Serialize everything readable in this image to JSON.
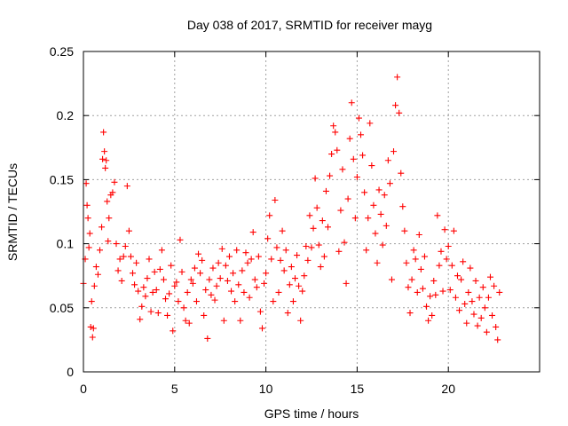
{
  "chart_data": {
    "type": "scatter",
    "title": "Day 038 of 2017, SRMTID for receiver mayg",
    "xlabel": "GPS time / hours",
    "ylabel": "SRMTID / TECUs",
    "xlim": [
      0,
      25
    ],
    "ylim": [
      0,
      0.25
    ],
    "xticks": [
      "0",
      "5",
      "10",
      "15",
      "20"
    ],
    "yticks": [
      "0",
      "0.05",
      "0.1",
      "0.15",
      "0.2",
      "0.25"
    ],
    "grid": true,
    "marker": "+",
    "color": "#ff0000",
    "series": [
      {
        "name": "SRMTID",
        "points": [
          [
            0.0,
            0.069
          ],
          [
            0.1,
            0.088
          ],
          [
            0.15,
            0.147
          ],
          [
            0.2,
            0.13
          ],
          [
            0.25,
            0.12
          ],
          [
            0.3,
            0.097
          ],
          [
            0.35,
            0.108
          ],
          [
            0.4,
            0.035
          ],
          [
            0.45,
            0.055
          ],
          [
            0.5,
            0.027
          ],
          [
            0.55,
            0.034
          ],
          [
            0.6,
            0.067
          ],
          [
            0.7,
            0.082
          ],
          [
            0.8,
            0.076
          ],
          [
            0.9,
            0.095
          ],
          [
            1.0,
            0.113
          ],
          [
            1.05,
            0.166
          ],
          [
            1.1,
            0.187
          ],
          [
            1.15,
            0.172
          ],
          [
            1.2,
            0.159
          ],
          [
            1.25,
            0.165
          ],
          [
            1.3,
            0.133
          ],
          [
            1.35,
            0.102
          ],
          [
            1.4,
            0.12
          ],
          [
            1.5,
            0.138
          ],
          [
            1.6,
            0.14
          ],
          [
            1.7,
            0.148
          ],
          [
            1.8,
            0.1
          ],
          [
            1.9,
            0.079
          ],
          [
            2.0,
            0.088
          ],
          [
            2.1,
            0.071
          ],
          [
            2.2,
            0.09
          ],
          [
            2.3,
            0.098
          ],
          [
            2.4,
            0.145
          ],
          [
            2.5,
            0.11
          ],
          [
            2.6,
            0.09
          ],
          [
            2.7,
            0.077
          ],
          [
            2.8,
            0.068
          ],
          [
            2.9,
            0.085
          ],
          [
            3.0,
            0.063
          ],
          [
            3.1,
            0.041
          ],
          [
            3.2,
            0.051
          ],
          [
            3.3,
            0.066
          ],
          [
            3.4,
            0.059
          ],
          [
            3.5,
            0.073
          ],
          [
            3.6,
            0.088
          ],
          [
            3.7,
            0.047
          ],
          [
            3.8,
            0.062
          ],
          [
            3.9,
            0.078
          ],
          [
            4.0,
            0.064
          ],
          [
            4.1,
            0.046
          ],
          [
            4.2,
            0.08
          ],
          [
            4.3,
            0.095
          ],
          [
            4.4,
            0.072
          ],
          [
            4.5,
            0.057
          ],
          [
            4.6,
            0.044
          ],
          [
            4.7,
            0.061
          ],
          [
            4.8,
            0.083
          ],
          [
            4.9,
            0.032
          ],
          [
            5.0,
            0.067
          ],
          [
            5.1,
            0.07
          ],
          [
            5.2,
            0.055
          ],
          [
            5.3,
            0.103
          ],
          [
            5.4,
            0.078
          ],
          [
            5.5,
            0.05
          ],
          [
            5.6,
            0.04
          ],
          [
            5.7,
            0.062
          ],
          [
            5.8,
            0.038
          ],
          [
            5.9,
            0.072
          ],
          [
            6.0,
            0.069
          ],
          [
            6.1,
            0.081
          ],
          [
            6.2,
            0.055
          ],
          [
            6.3,
            0.092
          ],
          [
            6.4,
            0.077
          ],
          [
            6.5,
            0.087
          ],
          [
            6.6,
            0.044
          ],
          [
            6.7,
            0.064
          ],
          [
            6.8,
            0.026
          ],
          [
            6.9,
            0.072
          ],
          [
            7.0,
            0.06
          ],
          [
            7.1,
            0.081
          ],
          [
            7.2,
            0.056
          ],
          [
            7.3,
            0.067
          ],
          [
            7.4,
            0.085
          ],
          [
            7.5,
            0.073
          ],
          [
            7.6,
            0.096
          ],
          [
            7.7,
            0.04
          ],
          [
            7.8,
            0.083
          ],
          [
            7.9,
            0.071
          ],
          [
            8.0,
            0.09
          ],
          [
            8.1,
            0.063
          ],
          [
            8.2,
            0.077
          ],
          [
            8.3,
            0.055
          ],
          [
            8.4,
            0.095
          ],
          [
            8.5,
            0.068
          ],
          [
            8.6,
            0.04
          ],
          [
            8.7,
            0.079
          ],
          [
            8.8,
            0.062
          ],
          [
            8.9,
            0.093
          ],
          [
            9.0,
            0.085
          ],
          [
            9.1,
            0.058
          ],
          [
            9.2,
            0.088
          ],
          [
            9.3,
            0.109
          ],
          [
            9.4,
            0.072
          ],
          [
            9.5,
            0.066
          ],
          [
            9.6,
            0.09
          ],
          [
            9.7,
            0.047
          ],
          [
            9.8,
            0.034
          ],
          [
            9.9,
            0.069
          ],
          [
            10.0,
            0.077
          ],
          [
            10.1,
            0.104
          ],
          [
            10.2,
            0.122
          ],
          [
            10.3,
            0.088
          ],
          [
            10.4,
            0.055
          ],
          [
            10.5,
            0.134
          ],
          [
            10.6,
            0.097
          ],
          [
            10.7,
            0.062
          ],
          [
            10.8,
            0.087
          ],
          [
            10.9,
            0.11
          ],
          [
            11.0,
            0.079
          ],
          [
            11.1,
            0.095
          ],
          [
            11.2,
            0.046
          ],
          [
            11.3,
            0.068
          ],
          [
            11.4,
            0.082
          ],
          [
            11.5,
            0.055
          ],
          [
            11.6,
            0.073
          ],
          [
            11.7,
            0.091
          ],
          [
            11.8,
            0.067
          ],
          [
            11.9,
            0.04
          ],
          [
            12.0,
            0.063
          ],
          [
            12.1,
            0.075
          ],
          [
            12.2,
            0.098
          ],
          [
            12.3,
            0.087
          ],
          [
            12.4,
            0.122
          ],
          [
            12.5,
            0.097
          ],
          [
            12.6,
            0.112
          ],
          [
            12.7,
            0.151
          ],
          [
            12.8,
            0.128
          ],
          [
            12.9,
            0.099
          ],
          [
            13.0,
            0.082
          ],
          [
            13.1,
            0.118
          ],
          [
            13.2,
            0.09
          ],
          [
            13.3,
            0.141
          ],
          [
            13.4,
            0.113
          ],
          [
            13.5,
            0.153
          ],
          [
            13.6,
            0.17
          ],
          [
            13.7,
            0.192
          ],
          [
            13.8,
            0.187
          ],
          [
            13.9,
            0.173
          ],
          [
            14.0,
            0.094
          ],
          [
            14.1,
            0.126
          ],
          [
            14.2,
            0.158
          ],
          [
            14.3,
            0.101
          ],
          [
            14.4,
            0.069
          ],
          [
            14.5,
            0.135
          ],
          [
            14.6,
            0.182
          ],
          [
            14.7,
            0.21
          ],
          [
            14.8,
            0.166
          ],
          [
            14.9,
            0.12
          ],
          [
            15.0,
            0.152
          ],
          [
            15.1,
            0.198
          ],
          [
            15.2,
            0.185
          ],
          [
            15.3,
            0.169
          ],
          [
            15.4,
            0.14
          ],
          [
            15.5,
            0.095
          ],
          [
            15.6,
            0.12
          ],
          [
            15.7,
            0.194
          ],
          [
            15.8,
            0.161
          ],
          [
            15.9,
            0.13
          ],
          [
            16.0,
            0.108
          ],
          [
            16.1,
            0.085
          ],
          [
            16.2,
            0.142
          ],
          [
            16.3,
            0.123
          ],
          [
            16.4,
            0.099
          ],
          [
            16.5,
            0.138
          ],
          [
            16.6,
            0.114
          ],
          [
            16.7,
            0.165
          ],
          [
            16.8,
            0.147
          ],
          [
            16.9,
            0.072
          ],
          [
            17.0,
            0.172
          ],
          [
            17.1,
            0.208
          ],
          [
            17.2,
            0.23
          ],
          [
            17.3,
            0.202
          ],
          [
            17.4,
            0.155
          ],
          [
            17.5,
            0.129
          ],
          [
            17.6,
            0.11
          ],
          [
            17.7,
            0.085
          ],
          [
            17.8,
            0.066
          ],
          [
            17.9,
            0.046
          ],
          [
            18.0,
            0.072
          ],
          [
            18.1,
            0.095
          ],
          [
            18.2,
            0.088
          ],
          [
            18.3,
            0.062
          ],
          [
            18.4,
            0.107
          ],
          [
            18.5,
            0.08
          ],
          [
            18.6,
            0.065
          ],
          [
            18.7,
            0.09
          ],
          [
            18.8,
            0.051
          ],
          [
            18.9,
            0.04
          ],
          [
            19.0,
            0.059
          ],
          [
            19.1,
            0.044
          ],
          [
            19.2,
            0.071
          ],
          [
            19.3,
            0.06
          ],
          [
            19.4,
            0.122
          ],
          [
            19.5,
            0.083
          ],
          [
            19.6,
            0.094
          ],
          [
            19.7,
            0.063
          ],
          [
            19.8,
            0.111
          ],
          [
            19.9,
            0.088
          ],
          [
            20.0,
            0.098
          ],
          [
            20.1,
            0.064
          ],
          [
            20.2,
            0.083
          ],
          [
            20.3,
            0.11
          ],
          [
            20.4,
            0.058
          ],
          [
            20.5,
            0.075
          ],
          [
            20.6,
            0.048
          ],
          [
            20.7,
            0.072
          ],
          [
            20.8,
            0.086
          ],
          [
            20.9,
            0.053
          ],
          [
            21.0,
            0.038
          ],
          [
            21.1,
            0.062
          ],
          [
            21.2,
            0.081
          ],
          [
            21.3,
            0.055
          ],
          [
            21.4,
            0.045
          ],
          [
            21.5,
            0.071
          ],
          [
            21.6,
            0.036
          ],
          [
            21.7,
            0.058
          ],
          [
            21.8,
            0.042
          ],
          [
            21.9,
            0.066
          ],
          [
            22.0,
            0.05
          ],
          [
            22.1,
            0.031
          ],
          [
            22.2,
            0.058
          ],
          [
            22.3,
            0.074
          ],
          [
            22.4,
            0.044
          ],
          [
            22.5,
            0.067
          ],
          [
            22.6,
            0.035
          ],
          [
            22.7,
            0.025
          ],
          [
            22.8,
            0.062
          ]
        ]
      }
    ]
  }
}
